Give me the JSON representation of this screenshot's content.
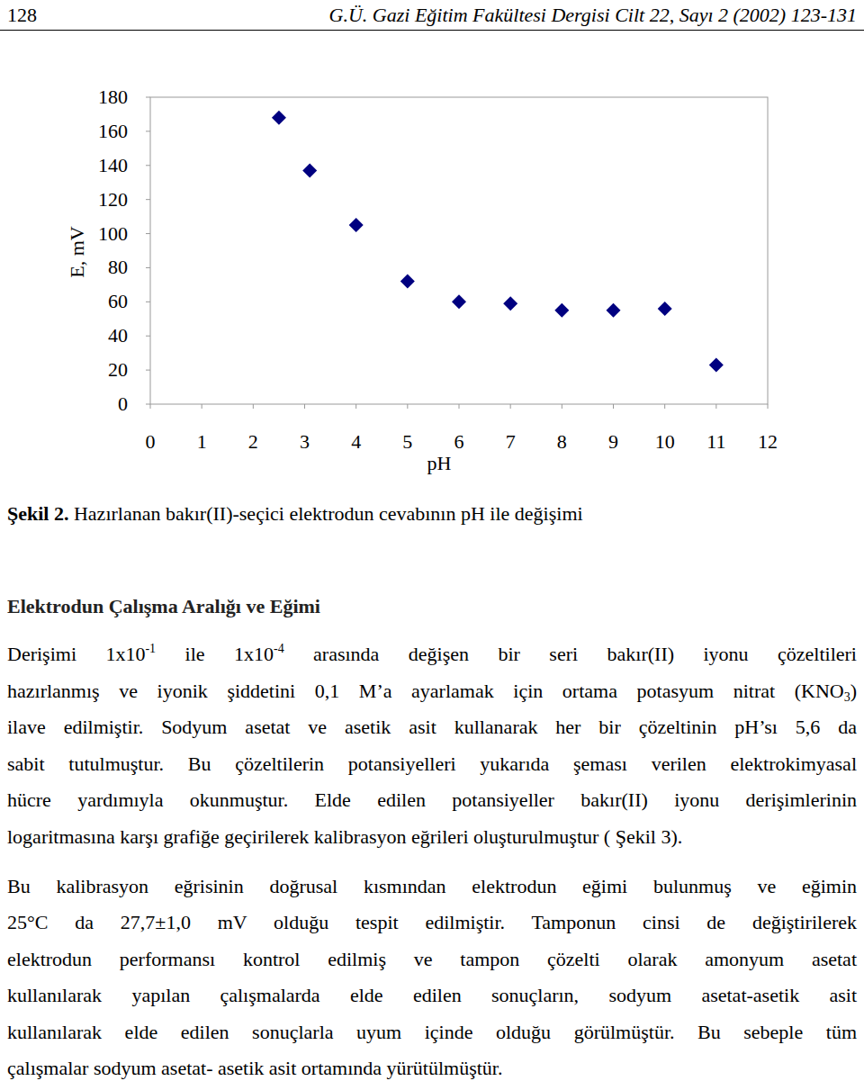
{
  "header": {
    "page": "128",
    "journal": "G.Ü. Gazi Eğitim Fakültesi Dergisi Cilt 22, Sayı 2 (2002) 123-131"
  },
  "chart_data": {
    "type": "scatter",
    "x_label": "pH",
    "y_label": "E, mV",
    "x": [
      2.5,
      3.1,
      4.0,
      5.0,
      6.0,
      7.0,
      8.0,
      9.0,
      10.0,
      11.0
    ],
    "values": [
      168,
      137,
      105,
      72,
      60,
      59,
      55,
      55,
      56,
      23
    ],
    "xlim": [
      0,
      12
    ],
    "ylim": [
      0,
      180
    ],
    "xticks": [
      0,
      1,
      2,
      3,
      4,
      5,
      6,
      7,
      8,
      9,
      10,
      11,
      12
    ],
    "yticks": [
      0,
      20,
      40,
      60,
      80,
      100,
      120,
      140,
      160,
      180
    ],
    "grid": false,
    "marker": "diamond",
    "color": "#000080"
  },
  "caption": [
    {
      "text": "Şekil 2.",
      "style": "bold"
    },
    {
      "text": " Hazırlanan bakır(II)-seçici elektrodun cevabının pH ile değişimi"
    }
  ],
  "heading": "Elektrodun Çalışma Aralığı ve Eğimi",
  "paragraphs": [
    {
      "lines": [
        [
          {
            "text": "Derişimi 1x10"
          },
          {
            "text": "-1",
            "style": "sup"
          },
          {
            "text": " ile 1x10"
          },
          {
            "text": "-4",
            "style": "sup"
          },
          {
            "text": " arasında değişen bir seri bakır(II) iyonu çözeltileri"
          }
        ],
        [
          {
            "text": "hazırlanmış ve iyonik şiddetini 0,1 M’a ayarlamak için ortama potasyum nitrat (KNO"
          },
          {
            "text": "3",
            "style": "sub"
          },
          {
            "text": ")"
          }
        ],
        [
          {
            "text": "ilave edilmiştir. Sodyum asetat ve asetik asit kullanarak her bir çözeltinin pH’sı 5,6 da"
          }
        ],
        [
          {
            "text": "sabit tutulmuştur. Bu çözeltilerin potansiyelleri yukarıda şeması verilen elektrokimyasal"
          }
        ],
        [
          {
            "text": "hücre yardımıyla okunmuştur. Elde edilen potansiyeller bakır(II) iyonu derişimlerinin"
          }
        ],
        [
          {
            "text": "logaritmasına karşı grafiğe geçirilerek kalibrasyon eğrileri oluşturulmuştur ( Şekil 3)."
          }
        ]
      ]
    },
    {
      "lines": [
        [
          {
            "text": "Bu kalibrasyon eğrisinin doğrusal kısmından elektrodun eğimi bulunmuş ve eğimin"
          }
        ],
        [
          {
            "text": "25°C da 27,7±1,0 mV olduğu tespit edilmiştir. Tamponun cinsi de değiştirilerek"
          }
        ],
        [
          {
            "text": "elektrodun performansı kontrol edilmiş ve tampon çözelti olarak amonyum asetat"
          }
        ],
        [
          {
            "text": "kullanılarak yapılan çalışmalarda elde edilen sonuçların, sodyum asetat-asetik asit"
          }
        ],
        [
          {
            "text": "kullanılarak elde edilen sonuçlarla uyum içinde olduğu görülmüştür. Bu sebeple tüm"
          }
        ],
        [
          {
            "text": "çalışmalar sodyum asetat- asetik asit ortamında yürütülmüştür."
          }
        ]
      ]
    }
  ]
}
